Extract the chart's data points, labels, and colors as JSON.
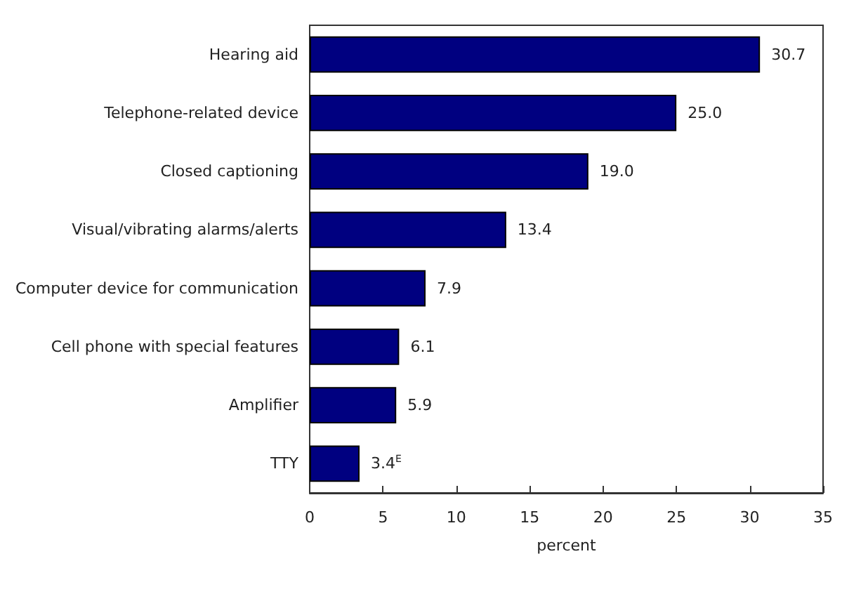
{
  "chart_data": {
    "type": "bar",
    "orientation": "horizontal",
    "xlabel": "percent",
    "categories": [
      "Hearing aid",
      "Telephone-related device",
      "Closed captioning",
      "Visual/vibrating alarms/alerts",
      "Computer device for communication",
      "Cell phone with special features",
      "Amplifier",
      "TTY"
    ],
    "values": [
      30.7,
      25.0,
      19.0,
      13.4,
      7.9,
      6.1,
      5.9,
      3.4
    ],
    "value_labels": [
      "30.7",
      "25.0",
      "19.0",
      "13.4",
      "7.9",
      "6.1",
      "5.9",
      "3.4$^{E}$"
    ],
    "color": "#000080",
    "xlim": [
      0,
      35
    ],
    "xticks": [
      0,
      5,
      10,
      15,
      20,
      25,
      30,
      35
    ],
    "grid": false
  }
}
